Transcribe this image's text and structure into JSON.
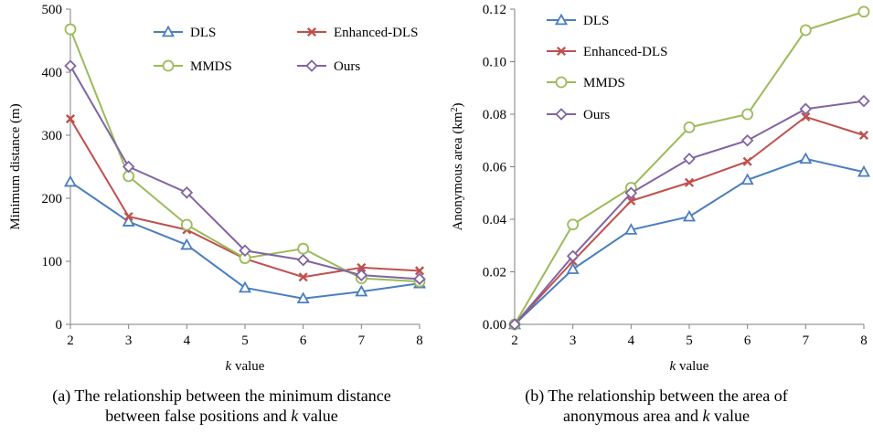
{
  "chart_data": [
    {
      "type": "line",
      "xlabel_var": "k",
      "xlabel_rest": " value",
      "ylabel": "Minimum distance (m)",
      "x": [
        2,
        3,
        4,
        5,
        6,
        7,
        8
      ],
      "xticks": [
        "2",
        "3",
        "4",
        "5",
        "6",
        "7",
        "8"
      ],
      "yticks": [
        "0",
        "100",
        "200",
        "300",
        "400",
        "500"
      ],
      "ylim": [
        0,
        500
      ],
      "grid": false,
      "legend_position": "top-right",
      "series": [
        {
          "name": "DLS",
          "marker": "triangle",
          "color": "#4a7ebf",
          "values": [
            226,
            163,
            126,
            58,
            41,
            52,
            65
          ]
        },
        {
          "name": "Enhanced-DLS",
          "marker": "x",
          "color": "#c0504d",
          "values": [
            326,
            171,
            150,
            104,
            75,
            90,
            85
          ]
        },
        {
          "name": "MMDS",
          "marker": "circle",
          "color": "#9bbb59",
          "values": [
            468,
            235,
            158,
            105,
            120,
            73,
            68
          ]
        },
        {
          "name": "Ours",
          "marker": "diamond",
          "color": "#8064a2",
          "values": [
            410,
            250,
            209,
            117,
            102,
            78,
            72
          ]
        }
      ],
      "caption": [
        "(a) The relationship between the minimum distance",
        "between false positions and ",
        "k",
        " value"
      ]
    },
    {
      "type": "line",
      "xlabel_var": "k",
      "xlabel_rest": " value",
      "ylabel_main": "Anonymous area (km",
      "ylabel_sup": "2",
      "ylabel_end": ")",
      "x": [
        2,
        3,
        4,
        5,
        6,
        7,
        8
      ],
      "xticks": [
        "2",
        "3",
        "4",
        "5",
        "6",
        "7",
        "8"
      ],
      "yticks": [
        "0.00",
        "0.02",
        "0.04",
        "0.06",
        "0.08",
        "0.10",
        "0.12"
      ],
      "ylim": [
        0,
        0.12
      ],
      "grid": false,
      "legend_position": "top-left",
      "series": [
        {
          "name": "DLS",
          "marker": "triangle",
          "color": "#4a7ebf",
          "values": [
            0,
            0.021,
            0.036,
            0.041,
            0.055,
            0.063,
            0.058
          ]
        },
        {
          "name": "Enhanced-DLS",
          "marker": "x",
          "color": "#c0504d",
          "values": [
            0,
            0.024,
            0.047,
            0.054,
            0.062,
            0.079,
            0.072
          ]
        },
        {
          "name": "MMDS",
          "marker": "circle",
          "color": "#9bbb59",
          "values": [
            0,
            0.038,
            0.052,
            0.075,
            0.08,
            0.112,
            0.119
          ]
        },
        {
          "name": "Ours",
          "marker": "diamond",
          "color": "#8064a2",
          "values": [
            0,
            0.026,
            0.05,
            0.063,
            0.07,
            0.082,
            0.085
          ]
        }
      ],
      "caption": [
        "(b) The relationship between the area of",
        "anonymous area and ",
        "k",
        " value"
      ]
    }
  ]
}
